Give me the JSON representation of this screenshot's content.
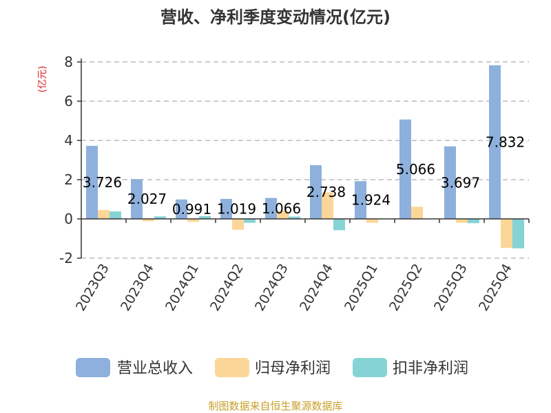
{
  "source": "制图数据来自恒生聚源数据库",
  "chart_data": {
    "type": "bar",
    "title": "营收、净利季度变动情况(亿元)",
    "unit_label": "(亿元)",
    "ylim": [
      -2,
      8
    ],
    "yticks": [
      8,
      6,
      4,
      2,
      0,
      -2
    ],
    "grid": true,
    "legend_position": "bottom",
    "categories": [
      "2023Q3",
      "2023Q4",
      "2024Q1",
      "2024Q2",
      "2024Q3",
      "2024Q4",
      "2025Q1",
      "2025Q2",
      "2025Q3",
      "2025Q4"
    ],
    "series": [
      {
        "name": "营业总收入",
        "color": "#8eb0dc",
        "values": [
          3.726,
          2.027,
          0.991,
          1.019,
          1.066,
          2.738,
          1.924,
          5.066,
          3.697,
          7.832
        ],
        "labels": [
          "3.726",
          "2.027",
          "0.991",
          "1.019",
          "1.066",
          "2.738",
          "1.924",
          "5.066",
          "3.697",
          "7.832"
        ]
      },
      {
        "name": "归母净利润",
        "color": "#fcd698",
        "values": [
          0.45,
          -0.12,
          -0.15,
          -0.55,
          0.42,
          1.35,
          -0.2,
          0.62,
          -0.2,
          -1.48
        ]
      },
      {
        "name": "扣非净利润",
        "color": "#86d3d6",
        "values": [
          0.38,
          0.13,
          0.14,
          -0.2,
          0.12,
          -0.58,
          0.0,
          0.0,
          -0.22,
          -1.5
        ]
      }
    ],
    "colors": {
      "title": "#333333",
      "unit": "#e02020",
      "source": "#c8a02c",
      "grid": "#bbbbbb"
    }
  }
}
